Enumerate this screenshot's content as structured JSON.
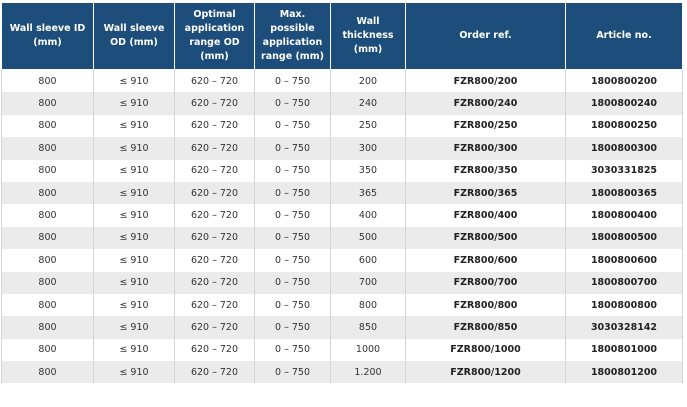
{
  "table": {
    "header": [
      "Wall sleeve ID (mm)",
      "Wall sleeve OD (mm)",
      "Optimal application range OD (mm)",
      "Max. possible application range (mm)",
      "Wall thickness (mm)",
      "Order ref.",
      "Article no."
    ],
    "rows": [
      [
        "800",
        "≤ 910",
        "620 – 720",
        "0 – 750",
        "200",
        "FZR800/200",
        "1800800200"
      ],
      [
        "800",
        "≤ 910",
        "620 – 720",
        "0 – 750",
        "240",
        "FZR800/240",
        "1800800240"
      ],
      [
        "800",
        "≤ 910",
        "620 – 720",
        "0 – 750",
        "250",
        "FZR800/250",
        "1800800250"
      ],
      [
        "800",
        "≤ 910",
        "620 – 720",
        "0 – 750",
        "300",
        "FZR800/300",
        "1800800300"
      ],
      [
        "800",
        "≤ 910",
        "620 – 720",
        "0 – 750",
        "350",
        "FZR800/350",
        "3030331825"
      ],
      [
        "800",
        "≤ 910",
        "620 – 720",
        "0 – 750",
        "365",
        "FZR800/365",
        "1800800365"
      ],
      [
        "800",
        "≤ 910",
        "620 – 720",
        "0 – 750",
        "400",
        "FZR800/400",
        "1800800400"
      ],
      [
        "800",
        "≤ 910",
        "620 – 720",
        "0 – 750",
        "500",
        "FZR800/500",
        "1800800500"
      ],
      [
        "800",
        "≤ 910",
        "620 – 720",
        "0 – 750",
        "600",
        "FZR800/600",
        "1800800600"
      ],
      [
        "800",
        "≤ 910",
        "620 – 720",
        "0 – 750",
        "700",
        "FZR800/700",
        "1800800700"
      ],
      [
        "800",
        "≤ 910",
        "620 – 720",
        "0 – 750",
        "800",
        "FZR800/800",
        "1800800800"
      ],
      [
        "800",
        "≤ 910",
        "620 – 720",
        "0 – 750",
        "850",
        "FZR800/850",
        "3030328142"
      ],
      [
        "800",
        "≤ 910",
        "620 – 720",
        "0 – 750",
        "1000",
        "FZR800/1000",
        "1800801000"
      ],
      [
        "800",
        "≤ 910",
        "620 – 720",
        "0 – 750",
        "1.200",
        "FZR800/1200",
        "1800801200"
      ]
    ]
  }
}
